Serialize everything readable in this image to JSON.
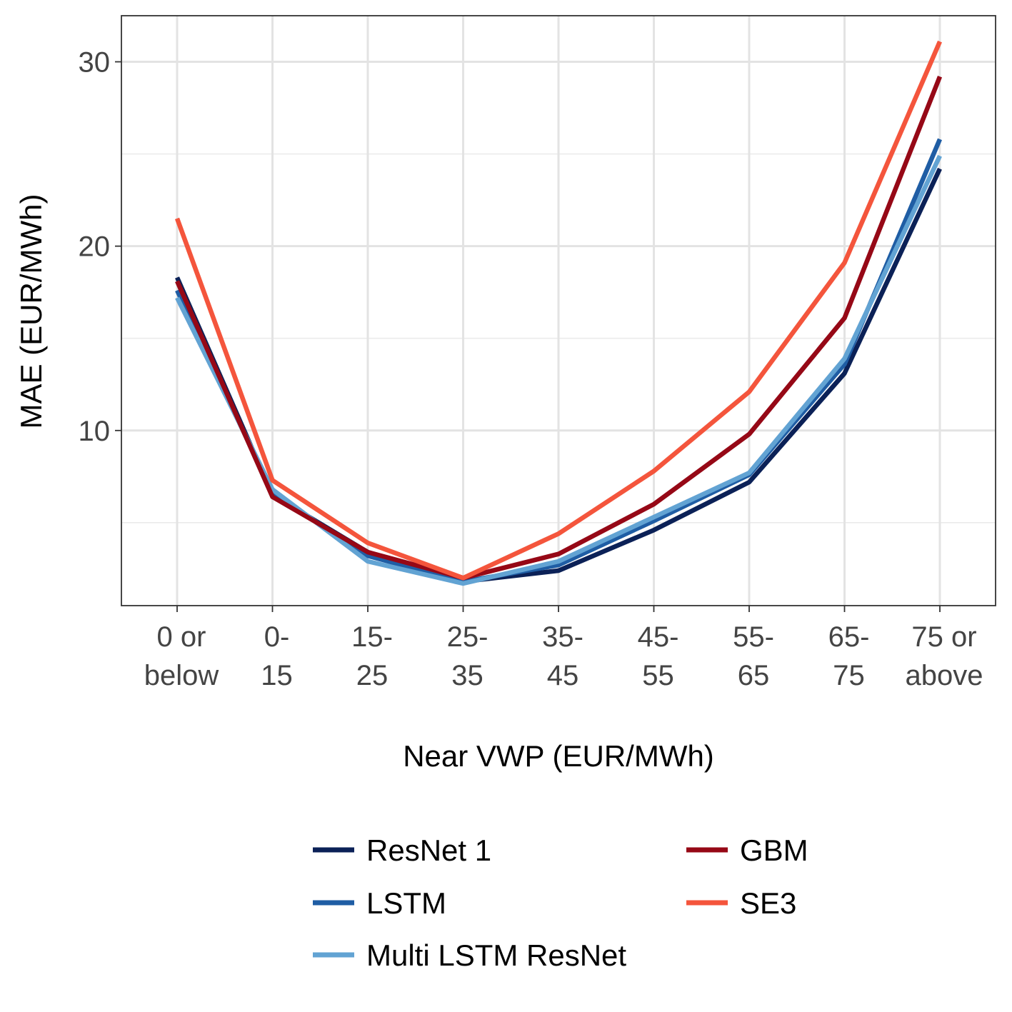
{
  "chart_data": {
    "type": "line",
    "title": "",
    "xlabel": "Near VWP (EUR/MWh)",
    "ylabel": "MAE (EUR/MWh)",
    "categories": [
      [
        "0 or",
        "below"
      ],
      [
        "0-",
        "15"
      ],
      [
        "15-",
        "25"
      ],
      [
        "25-",
        "35"
      ],
      [
        "35-",
        "45"
      ],
      [
        "45-",
        "55"
      ],
      [
        "55-",
        "65"
      ],
      [
        "65-",
        "75"
      ],
      [
        "75 or",
        "above"
      ]
    ],
    "ylim": [
      0.5,
      32.5
    ],
    "yticks": [
      10,
      20,
      30
    ],
    "yticks_labels": [
      "10",
      "20",
      "30"
    ],
    "yminor": [
      5,
      15,
      25
    ],
    "grid": true,
    "legend_position": "bottom",
    "series": [
      {
        "name": "ResNet 1",
        "color": "#0b2157",
        "values": [
          18.3,
          6.5,
          3.4,
          1.8,
          2.4,
          4.6,
          7.2,
          13.1,
          24.2
        ]
      },
      {
        "name": "LSTM",
        "color": "#1f5da4",
        "values": [
          17.6,
          6.6,
          3.2,
          1.8,
          2.7,
          5.1,
          7.6,
          13.6,
          25.8
        ]
      },
      {
        "name": "Multi LSTM ResNet",
        "color": "#62a3d3",
        "values": [
          17.2,
          6.8,
          2.9,
          1.7,
          2.9,
          5.3,
          7.7,
          13.9,
          24.9
        ]
      },
      {
        "name": "GBM",
        "color": "#960816",
        "values": [
          18.1,
          6.4,
          3.4,
          2.0,
          3.3,
          6.0,
          9.8,
          16.1,
          29.2
        ]
      },
      {
        "name": "SE3",
        "color": "#f4553c",
        "values": [
          21.5,
          7.3,
          3.9,
          2.0,
          4.4,
          7.8,
          12.1,
          19.1,
          31.1
        ]
      }
    ]
  }
}
